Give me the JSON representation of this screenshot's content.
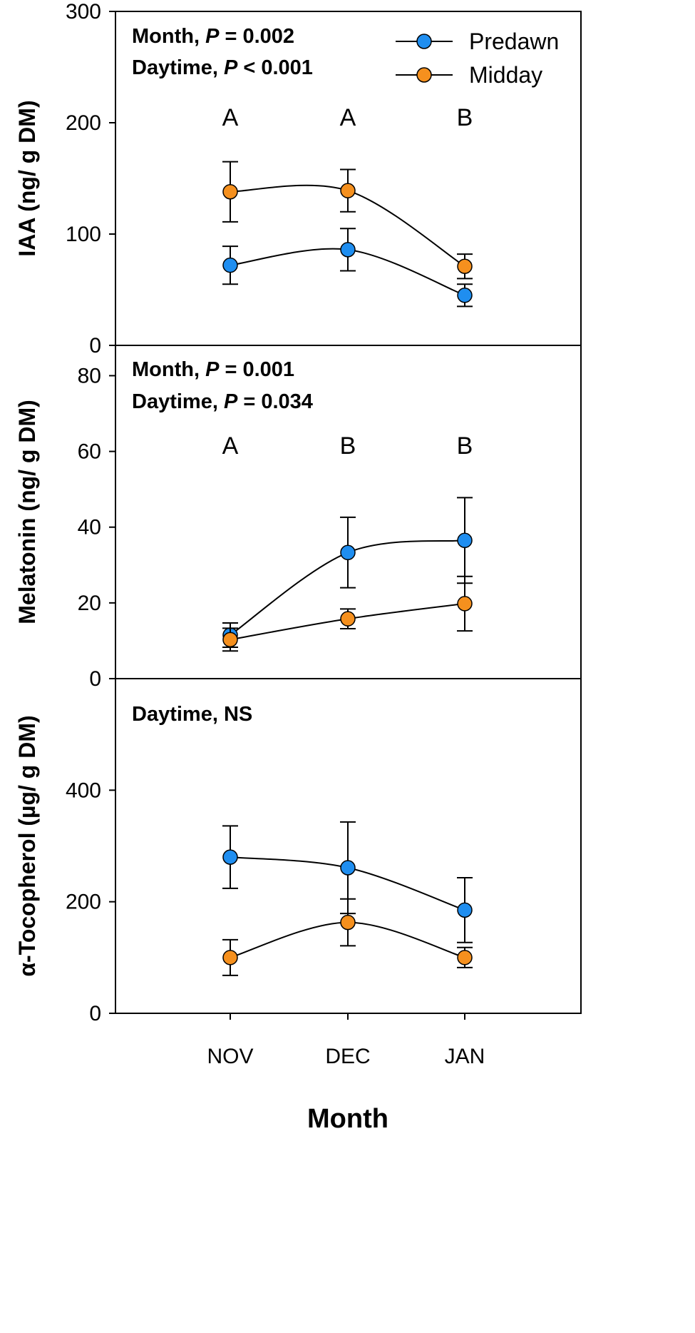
{
  "chart_data": {
    "type": "line",
    "categories": [
      "NOV",
      "DEC",
      "JAN"
    ],
    "xlabel": "Month",
    "legend": {
      "placement": "top-right",
      "entries": [
        {
          "name": "Predawn",
          "color": "#1f8ef0"
        },
        {
          "name": "Midday",
          "color": "#f5901e"
        }
      ]
    },
    "panels": [
      {
        "id": "iaa",
        "ylabel": "IAA (ng/ g DM)",
        "ylim": [
          0,
          300
        ],
        "yticks": [
          0,
          100,
          200,
          300
        ],
        "stats": [
          {
            "prefix": "Month, ",
            "p_label": "P",
            "value": " = 0.002"
          },
          {
            "prefix": "Daytime, ",
            "p_label": "P",
            "value": " < 0.001"
          }
        ],
        "letters": [
          "A",
          "A",
          "B"
        ],
        "series": [
          {
            "name": "Predawn",
            "values": [
              72,
              86,
              45
            ],
            "errors": [
              17,
              19,
              10
            ]
          },
          {
            "name": "Midday",
            "values": [
              138,
              139,
              71
            ],
            "errors": [
              27,
              19,
              11
            ]
          }
        ]
      },
      {
        "id": "melatonin",
        "ylabel": "Melatonin (ng/ g DM)",
        "ylim": [
          0,
          88
        ],
        "yticks": [
          0,
          20,
          40,
          60,
          80
        ],
        "stats": [
          {
            "prefix": "Month, ",
            "p_label": "P",
            "value": " = 0.001"
          },
          {
            "prefix": "Daytime, ",
            "p_label": "P",
            "value": " = 0.034"
          }
        ],
        "letters": [
          "A",
          "B",
          "B"
        ],
        "series": [
          {
            "name": "Predawn",
            "values": [
              11.5,
              33.3,
              36.5
            ],
            "errors": [
              3.2,
              9.3,
              11.3
            ]
          },
          {
            "name": "Midday",
            "values": [
              10.3,
              15.8,
              19.8
            ],
            "errors": [
              3.0,
              2.6,
              7.2
            ]
          }
        ]
      },
      {
        "id": "tocopherol",
        "ylabel": "α-Tocopherol (µg/ g DM)",
        "ylim": [
          0,
          600
        ],
        "yticks": [
          0,
          200,
          400
        ],
        "stats": [
          {
            "prefix": "Daytime, NS",
            "p_label": "",
            "value": ""
          }
        ],
        "letters": [],
        "series": [
          {
            "name": "Predawn",
            "values": [
              280,
              261,
              185
            ],
            "errors": [
              56,
              82,
              58
            ]
          },
          {
            "name": "Midday",
            "values": [
              100,
              163,
              100
            ],
            "errors": [
              32,
              42,
              18
            ]
          }
        ]
      }
    ]
  }
}
